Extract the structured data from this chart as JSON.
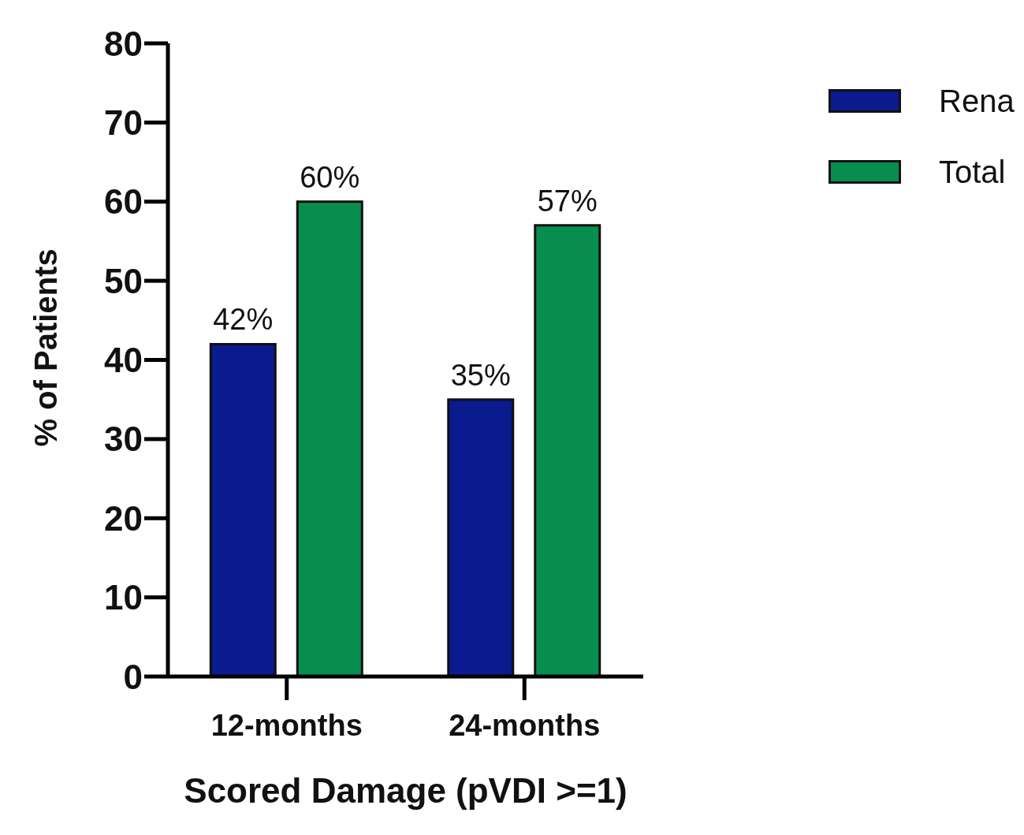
{
  "chart_data": {
    "type": "bar",
    "xlabel": "Scored Damage (pVDI >=1)",
    "ylabel": "% of Patients",
    "categories": [
      "12-months",
      "24-months"
    ],
    "series": [
      {
        "name": "Rena",
        "color": "#0a1a8f",
        "values": [
          42,
          35
        ],
        "value_labels": [
          "42%",
          "35%"
        ]
      },
      {
        "name": "Total",
        "color": "#078e4f",
        "values": [
          60,
          57
        ],
        "value_labels": [
          "60%",
          "57%"
        ]
      }
    ],
    "ylim": [
      0,
      80
    ],
    "yticks": [
      0,
      10,
      20,
      30,
      40,
      50,
      60,
      70,
      80
    ],
    "grid": false,
    "legend": "top right"
  }
}
